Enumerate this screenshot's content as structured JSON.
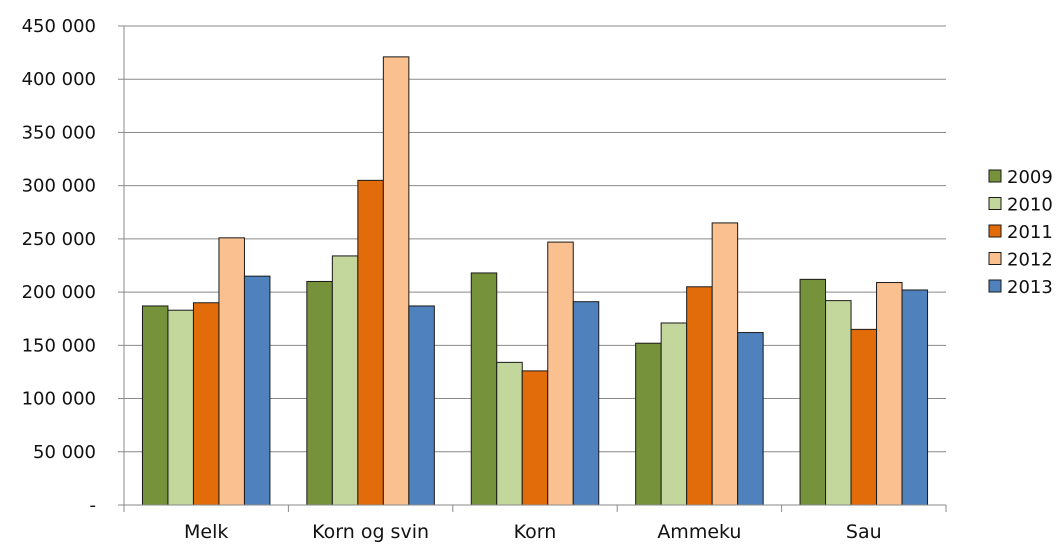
{
  "chart_data": {
    "type": "bar",
    "categories": [
      "Melk",
      "Korn og svin",
      "Korn",
      "Ammeku",
      "Sau"
    ],
    "series": [
      {
        "name": "2009",
        "color": "#76933c",
        "values": [
          187000,
          210000,
          218000,
          152000,
          212000
        ]
      },
      {
        "name": "2010",
        "color": "#c3d69b",
        "values": [
          183000,
          234000,
          134000,
          171000,
          192000
        ]
      },
      {
        "name": "2011",
        "color": "#e36c0a",
        "values": [
          190000,
          305000,
          126000,
          205000,
          165000
        ]
      },
      {
        "name": "2012",
        "color": "#fac090",
        "values": [
          251000,
          421000,
          247000,
          265000,
          209000
        ]
      },
      {
        "name": "2013",
        "color": "#4f81bd",
        "values": [
          215000,
          187000,
          191000,
          162000,
          202000
        ]
      }
    ],
    "ylim": [
      0,
      450000
    ],
    "yticks": [
      {
        "value": 0,
        "label": "-"
      },
      {
        "value": 50000,
        "label": "50 000"
      },
      {
        "value": 100000,
        "label": "100 000"
      },
      {
        "value": 150000,
        "label": "150 000"
      },
      {
        "value": 200000,
        "label": "200 000"
      },
      {
        "value": 250000,
        "label": "250 000"
      },
      {
        "value": 300000,
        "label": "300 000"
      },
      {
        "value": 350000,
        "label": "350 000"
      },
      {
        "value": 400000,
        "label": "400 000"
      },
      {
        "value": 450000,
        "label": "450 000"
      }
    ],
    "grid": true,
    "legend": "right",
    "title": "",
    "xlabel": "",
    "ylabel": ""
  }
}
